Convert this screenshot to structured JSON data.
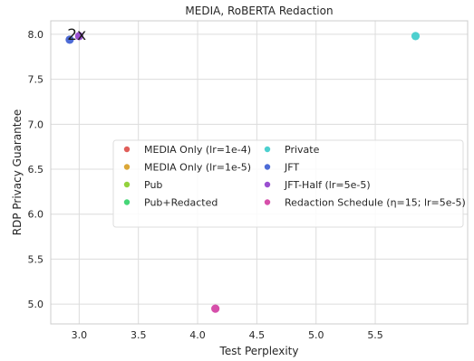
{
  "chart_data": {
    "type": "scatter",
    "title": "MEDIA, RoBERTA Redaction",
    "xlabel": "Test Perplexity",
    "ylabel": "RDP Privacy Guarantee",
    "xlim": [
      2.76,
      6.28
    ],
    "ylim": [
      4.78,
      8.15
    ],
    "x_ticks": [
      "3.0",
      "3.5",
      "4.0",
      "4.5",
      "5.0",
      "5.5"
    ],
    "y_ticks": [
      "5.0",
      "5.5",
      "6.0",
      "6.5",
      "7.0",
      "7.5",
      "8.0"
    ],
    "x_tick_values": [
      3.0,
      3.5,
      4.0,
      4.5,
      5.0,
      5.5
    ],
    "y_tick_values": [
      5.0,
      5.5,
      6.0,
      6.5,
      7.0,
      7.5,
      8.0
    ],
    "grid": true,
    "legend_position": "center",
    "series": [
      {
        "name": "MEDIA Only (lr=1e-4)",
        "color": "#e05e5a",
        "points": []
      },
      {
        "name": "MEDIA Only (lr=1e-5)",
        "color": "#dba737",
        "points": []
      },
      {
        "name": "Pub",
        "color": "#93d23d",
        "points": []
      },
      {
        "name": "Pub+Redacted",
        "color": "#46d677",
        "points": []
      },
      {
        "name": "Private",
        "color": "#4dd0cf",
        "points": [
          {
            "x": 5.84,
            "y": 7.98
          }
        ]
      },
      {
        "name": "JFT",
        "color": "#4d6bd6",
        "points": [
          {
            "x": 2.92,
            "y": 7.94
          }
        ]
      },
      {
        "name": "JFT-Half (lr=5e-5)",
        "color": "#9a4fd0",
        "points": [
          {
            "x": 3.0,
            "y": 7.98
          }
        ]
      },
      {
        "name": "Redaction Schedule (η=15; lr=5e-5)",
        "color": "#d64faa",
        "points": [
          {
            "x": 4.15,
            "y": 4.95
          }
        ]
      }
    ],
    "annotations": [
      {
        "text": "2x",
        "x": 2.98,
        "y": 8.0
      }
    ]
  }
}
